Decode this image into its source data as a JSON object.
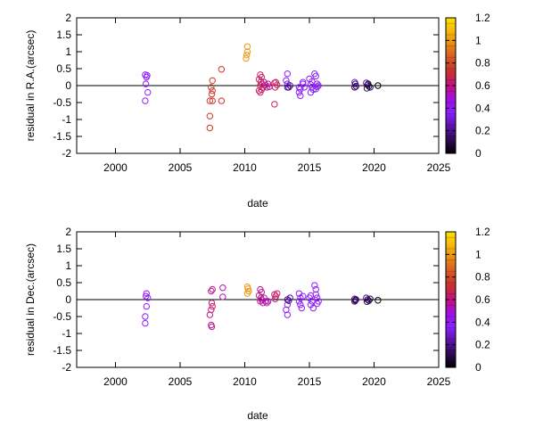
{
  "colorbar": {
    "tick_labels": [
      "0",
      "0.2",
      "0.4",
      "0.6",
      "0.8",
      "1",
      "1.2"
    ],
    "range": [
      0,
      1.2
    ]
  },
  "chart_data": [
    {
      "type": "scatter",
      "ylabel": "residual in R.A.(arcsec)",
      "xlabel": "date",
      "xlim": [
        1997,
        2025
      ],
      "ylim": [
        -2,
        2
      ],
      "xticks": [
        2000,
        2005,
        2010,
        2015,
        2020,
        2025
      ],
      "yticks": [
        -2,
        -1.5,
        -1,
        -0.5,
        0,
        0.5,
        1,
        1.5,
        2
      ],
      "zero_line": true,
      "grid": false,
      "marker": "open circle",
      "color_scale": "age (0 dark to 1.2 yellow)",
      "points": [
        {
          "x": 2002.3,
          "y": 0.32,
          "c": 0.42
        },
        {
          "x": 2002.4,
          "y": 0.25,
          "c": 0.42
        },
        {
          "x": 2002.35,
          "y": 0.05,
          "c": 0.42
        },
        {
          "x": 2002.5,
          "y": -0.2,
          "c": 0.42
        },
        {
          "x": 2002.3,
          "y": -0.45,
          "c": 0.42
        },
        {
          "x": 2002.45,
          "y": 0.3,
          "c": 0.42
        },
        {
          "x": 2007.5,
          "y": 0.15,
          "c": 0.72
        },
        {
          "x": 2007.4,
          "y": -0.05,
          "c": 0.72
        },
        {
          "x": 2007.5,
          "y": -0.15,
          "c": 0.72
        },
        {
          "x": 2007.45,
          "y": -0.25,
          "c": 0.72
        },
        {
          "x": 2007.3,
          "y": -0.45,
          "c": 0.72
        },
        {
          "x": 2007.5,
          "y": -0.45,
          "c": 0.72
        },
        {
          "x": 2007.3,
          "y": -0.9,
          "c": 0.72
        },
        {
          "x": 2007.3,
          "y": -1.25,
          "c": 0.72
        },
        {
          "x": 2008.2,
          "y": 0.48,
          "c": 0.7
        },
        {
          "x": 2008.2,
          "y": -0.45,
          "c": 0.7
        },
        {
          "x": 2010.2,
          "y": 1.15,
          "c": 0.98
        },
        {
          "x": 2010.2,
          "y": 1.0,
          "c": 0.98
        },
        {
          "x": 2010.15,
          "y": 0.9,
          "c": 0.98
        },
        {
          "x": 2010.1,
          "y": 0.8,
          "c": 0.98
        },
        {
          "x": 2011.2,
          "y": 0.32,
          "c": 0.62
        },
        {
          "x": 2011.3,
          "y": 0.25,
          "c": 0.62
        },
        {
          "x": 2011.1,
          "y": 0.18,
          "c": 0.62
        },
        {
          "x": 2011.25,
          "y": 0.12,
          "c": 0.62
        },
        {
          "x": 2011.3,
          "y": 0.05,
          "c": 0.62
        },
        {
          "x": 2011.2,
          "y": 0.0,
          "c": 0.62
        },
        {
          "x": 2011.4,
          "y": -0.05,
          "c": 0.62
        },
        {
          "x": 2011.3,
          "y": -0.12,
          "c": 0.62
        },
        {
          "x": 2011.2,
          "y": -0.2,
          "c": 0.62
        },
        {
          "x": 2011.1,
          "y": -0.15,
          "c": 0.62
        },
        {
          "x": 2011.5,
          "y": 0.1,
          "c": 0.55
        },
        {
          "x": 2011.6,
          "y": 0.02,
          "c": 0.55
        },
        {
          "x": 2011.7,
          "y": -0.05,
          "c": 0.55
        },
        {
          "x": 2011.8,
          "y": 0.05,
          "c": 0.55
        },
        {
          "x": 2011.9,
          "y": -0.03,
          "c": 0.55
        },
        {
          "x": 2012.3,
          "y": 0.08,
          "c": 0.62
        },
        {
          "x": 2012.4,
          "y": 0.1,
          "c": 0.62
        },
        {
          "x": 2012.5,
          "y": 0.02,
          "c": 0.62
        },
        {
          "x": 2012.35,
          "y": -0.05,
          "c": 0.62
        },
        {
          "x": 2012.3,
          "y": -0.55,
          "c": 0.62
        },
        {
          "x": 2013.3,
          "y": 0.35,
          "c": 0.42
        },
        {
          "x": 2013.2,
          "y": 0.15,
          "c": 0.42
        },
        {
          "x": 2013.3,
          "y": 0.05,
          "c": 0.35
        },
        {
          "x": 2013.5,
          "y": 0.0,
          "c": 0.2
        },
        {
          "x": 2013.4,
          "y": -0.05,
          "c": 0.2
        },
        {
          "x": 2013.3,
          "y": -0.05,
          "c": 0.2
        },
        {
          "x": 2014.2,
          "y": -0.05,
          "c": 0.35
        },
        {
          "x": 2014.3,
          "y": -0.1,
          "c": 0.35
        },
        {
          "x": 2014.2,
          "y": -0.2,
          "c": 0.4
        },
        {
          "x": 2014.3,
          "y": -0.3,
          "c": 0.4
        },
        {
          "x": 2014.5,
          "y": 0.05,
          "c": 0.4
        },
        {
          "x": 2014.5,
          "y": 0.1,
          "c": 0.4
        },
        {
          "x": 2014.6,
          "y": -0.05,
          "c": 0.4
        },
        {
          "x": 2015.0,
          "y": 0.2,
          "c": 0.38
        },
        {
          "x": 2015.2,
          "y": 0.12,
          "c": 0.38
        },
        {
          "x": 2015.1,
          "y": 0.03,
          "c": 0.38
        },
        {
          "x": 2015.2,
          "y": -0.05,
          "c": 0.38
        },
        {
          "x": 2015.3,
          "y": -0.12,
          "c": 0.38
        },
        {
          "x": 2015.1,
          "y": -0.2,
          "c": 0.38
        },
        {
          "x": 2015.4,
          "y": 0.35,
          "c": 0.38
        },
        {
          "x": 2015.5,
          "y": 0.28,
          "c": 0.38
        },
        {
          "x": 2015.6,
          "y": 0.05,
          "c": 0.38
        },
        {
          "x": 2015.6,
          "y": -0.03,
          "c": 0.38
        },
        {
          "x": 2015.7,
          "y": 0.0,
          "c": 0.38
        },
        {
          "x": 2015.5,
          "y": -0.1,
          "c": 0.38
        },
        {
          "x": 2018.5,
          "y": 0.1,
          "c": 0.3
        },
        {
          "x": 2018.55,
          "y": 0.05,
          "c": 0.15
        },
        {
          "x": 2018.6,
          "y": -0.02,
          "c": 0.12
        },
        {
          "x": 2018.5,
          "y": -0.05,
          "c": 0.12
        },
        {
          "x": 2019.4,
          "y": 0.08,
          "c": 0.22
        },
        {
          "x": 2019.5,
          "y": 0.02,
          "c": 0.12
        },
        {
          "x": 2019.6,
          "y": -0.02,
          "c": 0.1
        },
        {
          "x": 2019.7,
          "y": -0.05,
          "c": 0.1
        },
        {
          "x": 2019.55,
          "y": 0.05,
          "c": 0.1
        },
        {
          "x": 2019.45,
          "y": -0.08,
          "c": 0.1
        },
        {
          "x": 2020.3,
          "y": 0.0,
          "c": 0.0
        }
      ]
    },
    {
      "type": "scatter",
      "ylabel": "residual in Dec.(arcsec)",
      "xlabel": "date",
      "xlim": [
        1997,
        2025
      ],
      "ylim": [
        -2,
        2
      ],
      "xticks": [
        2000,
        2005,
        2010,
        2015,
        2020,
        2025
      ],
      "yticks": [
        -2,
        -1.5,
        -1,
        -0.5,
        0,
        0.5,
        1,
        1.5,
        2
      ],
      "zero_line": true,
      "grid": false,
      "marker": "open circle",
      "color_scale": "age (0 dark to 1.2 yellow)",
      "points": [
        {
          "x": 2002.4,
          "y": 0.18,
          "c": 0.42
        },
        {
          "x": 2002.35,
          "y": 0.1,
          "c": 0.42
        },
        {
          "x": 2002.5,
          "y": 0.05,
          "c": 0.42
        },
        {
          "x": 2002.4,
          "y": -0.2,
          "c": 0.42
        },
        {
          "x": 2002.3,
          "y": -0.5,
          "c": 0.42
        },
        {
          "x": 2002.3,
          "y": -0.7,
          "c": 0.42
        },
        {
          "x": 2007.5,
          "y": 0.3,
          "c": 0.55
        },
        {
          "x": 2007.4,
          "y": 0.25,
          "c": 0.55
        },
        {
          "x": 2007.45,
          "y": -0.1,
          "c": 0.6
        },
        {
          "x": 2007.5,
          "y": -0.2,
          "c": 0.6
        },
        {
          "x": 2007.4,
          "y": -0.3,
          "c": 0.6
        },
        {
          "x": 2007.3,
          "y": -0.45,
          "c": 0.55
        },
        {
          "x": 2007.4,
          "y": -0.75,
          "c": 0.55
        },
        {
          "x": 2007.45,
          "y": -0.8,
          "c": 0.55
        },
        {
          "x": 2008.3,
          "y": 0.35,
          "c": 0.5
        },
        {
          "x": 2008.3,
          "y": 0.08,
          "c": 0.5
        },
        {
          "x": 2010.2,
          "y": 0.38,
          "c": 0.98
        },
        {
          "x": 2010.25,
          "y": 0.32,
          "c": 0.98
        },
        {
          "x": 2010.3,
          "y": 0.25,
          "c": 0.98
        },
        {
          "x": 2010.2,
          "y": 0.18,
          "c": 0.98
        },
        {
          "x": 2011.2,
          "y": 0.3,
          "c": 0.55
        },
        {
          "x": 2011.3,
          "y": 0.22,
          "c": 0.55
        },
        {
          "x": 2011.1,
          "y": 0.12,
          "c": 0.55
        },
        {
          "x": 2011.25,
          "y": 0.05,
          "c": 0.55
        },
        {
          "x": 2011.3,
          "y": 0.0,
          "c": 0.55
        },
        {
          "x": 2011.2,
          "y": -0.05,
          "c": 0.55
        },
        {
          "x": 2011.4,
          "y": -0.1,
          "c": 0.5
        },
        {
          "x": 2011.5,
          "y": 0.05,
          "c": 0.5
        },
        {
          "x": 2011.6,
          "y": -0.05,
          "c": 0.5
        },
        {
          "x": 2011.7,
          "y": -0.1,
          "c": 0.5
        },
        {
          "x": 2011.8,
          "y": -0.05,
          "c": 0.5
        },
        {
          "x": 2012.3,
          "y": 0.15,
          "c": 0.6
        },
        {
          "x": 2012.4,
          "y": 0.1,
          "c": 0.6
        },
        {
          "x": 2012.5,
          "y": 0.18,
          "c": 0.6
        },
        {
          "x": 2012.35,
          "y": 0.02,
          "c": 0.6
        },
        {
          "x": 2013.3,
          "y": -0.45,
          "c": 0.42
        },
        {
          "x": 2013.2,
          "y": -0.3,
          "c": 0.42
        },
        {
          "x": 2013.3,
          "y": -0.15,
          "c": 0.4
        },
        {
          "x": 2013.4,
          "y": -0.03,
          "c": 0.2
        },
        {
          "x": 2013.3,
          "y": 0.0,
          "c": 0.2
        },
        {
          "x": 2013.5,
          "y": 0.05,
          "c": 0.2
        },
        {
          "x": 2014.2,
          "y": 0.18,
          "c": 0.38
        },
        {
          "x": 2014.3,
          "y": 0.05,
          "c": 0.38
        },
        {
          "x": 2014.2,
          "y": -0.05,
          "c": 0.38
        },
        {
          "x": 2014.3,
          "y": -0.15,
          "c": 0.38
        },
        {
          "x": 2014.4,
          "y": -0.25,
          "c": 0.38
        },
        {
          "x": 2014.5,
          "y": 0.1,
          "c": 0.38
        },
        {
          "x": 2015.1,
          "y": 0.12,
          "c": 0.38
        },
        {
          "x": 2015.0,
          "y": 0.05,
          "c": 0.38
        },
        {
          "x": 2015.2,
          "y": -0.05,
          "c": 0.38
        },
        {
          "x": 2015.1,
          "y": -0.15,
          "c": 0.38
        },
        {
          "x": 2015.3,
          "y": -0.25,
          "c": 0.38
        },
        {
          "x": 2015.4,
          "y": 0.42,
          "c": 0.4
        },
        {
          "x": 2015.5,
          "y": 0.3,
          "c": 0.4
        },
        {
          "x": 2015.5,
          "y": 0.15,
          "c": 0.4
        },
        {
          "x": 2015.6,
          "y": 0.05,
          "c": 0.4
        },
        {
          "x": 2015.7,
          "y": -0.05,
          "c": 0.4
        },
        {
          "x": 2015.6,
          "y": -0.12,
          "c": 0.4
        },
        {
          "x": 2018.5,
          "y": 0.02,
          "c": 0.2
        },
        {
          "x": 2018.55,
          "y": -0.02,
          "c": 0.15
        },
        {
          "x": 2018.6,
          "y": 0.0,
          "c": 0.12
        },
        {
          "x": 2018.5,
          "y": -0.05,
          "c": 0.12
        },
        {
          "x": 2019.4,
          "y": 0.05,
          "c": 0.2
        },
        {
          "x": 2019.5,
          "y": 0.0,
          "c": 0.12
        },
        {
          "x": 2019.6,
          "y": -0.03,
          "c": 0.1
        },
        {
          "x": 2019.7,
          "y": 0.02,
          "c": 0.1
        },
        {
          "x": 2019.45,
          "y": -0.06,
          "c": 0.1
        },
        {
          "x": 2020.3,
          "y": -0.02,
          "c": 0.0
        }
      ]
    }
  ]
}
